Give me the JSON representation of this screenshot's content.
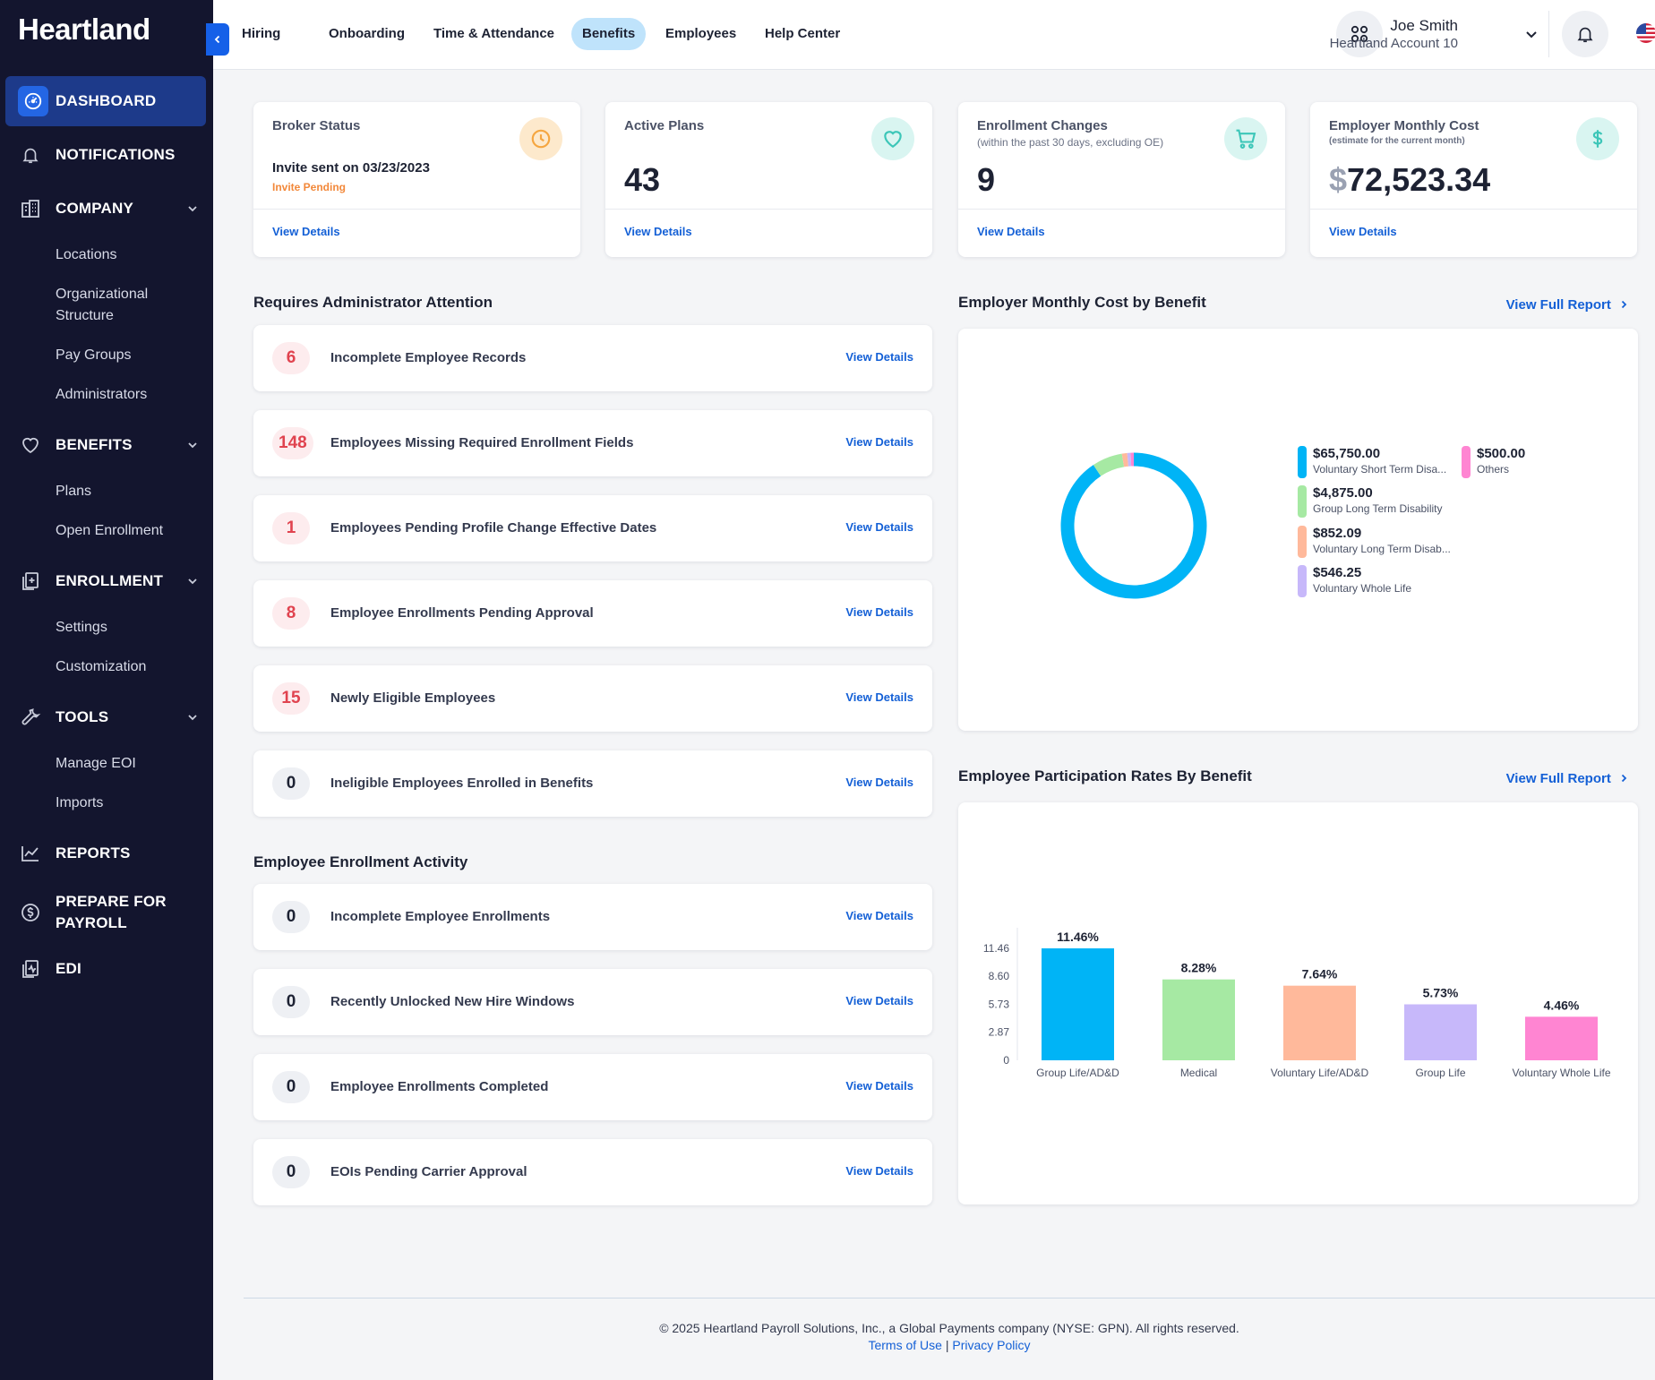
{
  "brand": "Heartland",
  "sidebar": {
    "dashboard": "DASHBOARD",
    "notifications": "NOTIFICATIONS",
    "company": "COMPANY",
    "company_items": [
      "Locations",
      "Organizational",
      "Structure",
      "Pay Groups",
      "Administrators"
    ],
    "benefits": "BENEFITS",
    "benefits_items": [
      "Plans",
      "Open Enrollment"
    ],
    "enrollment": "ENROLLMENT",
    "enrollment_items": [
      "Settings",
      "Customization"
    ],
    "tools": "TOOLS",
    "tools_items": [
      "Manage EOI",
      "Imports"
    ],
    "reports": "REPORTS",
    "prepare_line1": "PREPARE FOR",
    "prepare_line2": "PAYROLL",
    "edi": "EDI"
  },
  "topnav": [
    "Hiring",
    "Onboarding",
    "Time & Attendance",
    "Benefits",
    "Employees",
    "Help Center"
  ],
  "user": {
    "name": "Joe Smith",
    "account": "Heartland Account 10"
  },
  "stats": [
    {
      "title": "Broker Status",
      "line1": "Invite sent on 03/23/2023",
      "line2": "Invite Pending",
      "link": "View Details",
      "icon": "clock-icon",
      "color": "#f5a640"
    },
    {
      "title": "Active Plans",
      "value": "43",
      "link": "View Details",
      "icon": "heart-icon",
      "color": "#3cc6b8"
    },
    {
      "title": "Enrollment Changes",
      "subtitle": "(within the past 30 days, excluding OE)",
      "value": "9",
      "link": "View Details",
      "icon": "cart-icon",
      "color": "#3cc6b8"
    },
    {
      "title": "Employer Monthly Cost",
      "subtitle": "(estimate for the current month)",
      "currency": "$",
      "value": "72,523.34",
      "link": "View Details",
      "icon": "dollar-icon",
      "color": "#3cc6b8"
    }
  ],
  "attention": {
    "title": "Requires Administrator Attention",
    "rows": [
      {
        "count": "6",
        "label": "Incomplete Employee Records",
        "link": "View Details"
      },
      {
        "count": "148",
        "label": "Employees Missing Required Enrollment Fields",
        "link": "View Details"
      },
      {
        "count": "1",
        "label": "Employees Pending Profile Change Effective Dates",
        "link": "View Details"
      },
      {
        "count": "8",
        "label": "Employee Enrollments Pending Approval",
        "link": "View Details"
      },
      {
        "count": "15",
        "label": "Newly Eligible Employees",
        "link": "View Details"
      },
      {
        "count": "0",
        "label": "Ineligible Employees Enrolled in Benefits",
        "link": "View Details"
      }
    ]
  },
  "activity": {
    "title": "Employee Enrollment Activity",
    "rows": [
      {
        "count": "0",
        "label": "Incomplete Employee Enrollments",
        "link": "View Details"
      },
      {
        "count": "0",
        "label": "Recently Unlocked New Hire Windows",
        "link": "View Details"
      },
      {
        "count": "0",
        "label": "Employee Enrollments Completed",
        "link": "View Details"
      },
      {
        "count": "0",
        "label": "EOIs Pending Carrier Approval",
        "link": "View Details"
      }
    ]
  },
  "cost_panel": {
    "title": "Employer Monthly Cost by Benefit",
    "link": "View Full Report"
  },
  "participation_panel": {
    "title": "Employee Participation Rates By Benefit",
    "link": "View Full Report"
  },
  "chart_data": [
    {
      "type": "pie",
      "variant": "donut",
      "labels": [
        "Voluntary Short Term Disa...",
        "Group Long Term Disability",
        "Voluntary Long Term Disab...",
        "Voluntary Whole Life",
        "Others"
      ],
      "display_values": [
        "$65,750.00",
        "$4,875.00",
        "$852.09",
        "$546.25",
        "$500.00"
      ],
      "values": [
        65750.0,
        4875.0,
        852.09,
        546.25,
        500.0
      ],
      "colors": [
        "#00b4f6",
        "#a6e9a3",
        "#ffb99b",
        "#c7b8fa",
        "#ff85d2"
      ],
      "legend": "right"
    },
    {
      "type": "bar",
      "categories": [
        "Group Life/AD&D",
        "Medical",
        "Voluntary Life/AD&D",
        "Group Life",
        "Voluntary Whole Life"
      ],
      "values": [
        11.46,
        8.28,
        7.64,
        5.73,
        4.46
      ],
      "data_labels": [
        "11.46%",
        "8.28%",
        "7.64%",
        "5.73%",
        "4.46%"
      ],
      "colors": [
        "#00b4f6",
        "#a6e9a3",
        "#ffb99b",
        "#c7b8fa",
        "#ff85d2"
      ],
      "yticks": [
        "11.46",
        "8.60",
        "5.73",
        "2.87",
        "0"
      ],
      "ylim": [
        0,
        11.46
      ]
    }
  ],
  "footer": {
    "copyright": "© 2025 Heartland Payroll Solutions, Inc., a Global Payments company (NYSE: GPN). All rights reserved.",
    "terms": "Terms of Use",
    "separator": "|",
    "privacy": "Privacy Policy"
  }
}
